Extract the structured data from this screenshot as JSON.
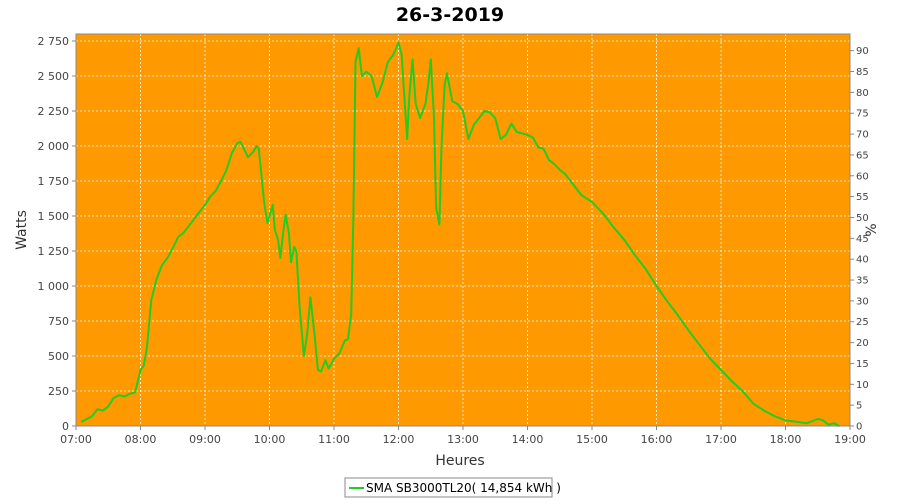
{
  "chart_data": {
    "type": "line",
    "title": "26-3-2019",
    "xlabel": "Heures",
    "ylabel": "Watts",
    "y2label": "%",
    "xlim": [
      "07:00",
      "19:00"
    ],
    "ylim": [
      0,
      2800
    ],
    "y2lim": [
      0,
      94
    ],
    "x_ticks": [
      "07:00",
      "08:00",
      "09:00",
      "10:00",
      "11:00",
      "12:00",
      "13:00",
      "14:00",
      "15:00",
      "16:00",
      "17:00",
      "18:00",
      "19:00"
    ],
    "y_ticks": [
      "0",
      "250",
      "500",
      "750",
      "1 000",
      "1 250",
      "1 500",
      "1 750",
      "2 000",
      "2 250",
      "2 500",
      "2 750"
    ],
    "y2_ticks": [
      "0",
      "5",
      "10",
      "15",
      "20",
      "25",
      "30",
      "35",
      "40",
      "45",
      "50",
      "55",
      "60",
      "65",
      "70",
      "75",
      "80",
      "85",
      "90"
    ],
    "grid": true,
    "legend_position": "bottom-center",
    "colors": {
      "plot_background": "#ff9900",
      "series_line": "#22cc22",
      "grid": "#ffffff"
    },
    "series": [
      {
        "name": "SMA SB3000TL20( 14,854 kWh )",
        "x": [
          "07:05",
          "07:10",
          "07:15",
          "07:20",
          "07:25",
          "07:30",
          "07:35",
          "07:40",
          "07:45",
          "07:50",
          "07:55",
          "08:00",
          "08:03",
          "08:06",
          "08:10",
          "08:15",
          "08:20",
          "08:25",
          "08:30",
          "08:35",
          "08:40",
          "08:45",
          "08:50",
          "08:55",
          "09:00",
          "09:05",
          "09:10",
          "09:15",
          "09:20",
          "09:25",
          "09:30",
          "09:33",
          "09:35",
          "09:40",
          "09:45",
          "09:48",
          "09:50",
          "09:55",
          "09:58",
          "10:00",
          "10:03",
          "10:05",
          "10:08",
          "10:10",
          "10:13",
          "10:15",
          "10:18",
          "10:20",
          "10:23",
          "10:25",
          "10:28",
          "10:32",
          "10:35",
          "10:38",
          "10:42",
          "10:45",
          "10:48",
          "10:52",
          "10:55",
          "11:00",
          "11:05",
          "11:10",
          "11:13",
          "11:16",
          "11:18",
          "11:20",
          "11:23",
          "11:26",
          "11:30",
          "11:35",
          "11:40",
          "11:45",
          "11:50",
          "11:55",
          "11:58",
          "12:00",
          "12:03",
          "12:05",
          "12:08",
          "12:10",
          "12:13",
          "12:16",
          "12:20",
          "12:25",
          "12:28",
          "12:30",
          "12:33",
          "12:35",
          "12:38",
          "12:40",
          "12:43",
          "12:45",
          "12:50",
          "12:55",
          "13:00",
          "13:05",
          "13:10",
          "13:15",
          "13:20",
          "13:25",
          "13:30",
          "13:35",
          "13:40",
          "13:45",
          "13:50",
          "14:00",
          "14:05",
          "14:10",
          "14:15",
          "14:20",
          "14:25",
          "14:30",
          "14:35",
          "14:40",
          "14:45",
          "14:50",
          "15:00",
          "15:10",
          "15:20",
          "15:30",
          "15:40",
          "15:50",
          "16:00",
          "16:10",
          "16:20",
          "16:30",
          "16:40",
          "16:50",
          "17:00",
          "17:10",
          "17:20",
          "17:30",
          "17:40",
          "17:50",
          "18:00",
          "18:10",
          "18:20",
          "18:30",
          "18:35",
          "18:40",
          "18:45",
          "18:50"
        ],
        "values": [
          30,
          50,
          70,
          120,
          110,
          140,
          200,
          220,
          210,
          230,
          240,
          400,
          430,
          560,
          900,
          1050,
          1150,
          1200,
          1270,
          1350,
          1380,
          1430,
          1480,
          1530,
          1580,
          1640,
          1680,
          1750,
          1830,
          1950,
          2020,
          2030,
          2000,
          1920,
          1960,
          2000,
          1980,
          1600,
          1450,
          1500,
          1580,
          1400,
          1330,
          1200,
          1400,
          1510,
          1380,
          1170,
          1280,
          1250,
          850,
          500,
          650,
          920,
          650,
          400,
          390,
          470,
          410,
          480,
          520,
          610,
          620,
          800,
          1500,
          2600,
          2700,
          2500,
          2530,
          2500,
          2350,
          2450,
          2600,
          2650,
          2700,
          2740,
          2650,
          2400,
          2050,
          2350,
          2620,
          2300,
          2200,
          2300,
          2460,
          2620,
          2200,
          1560,
          1440,
          2000,
          2440,
          2520,
          2320,
          2300,
          2250,
          2050,
          2150,
          2200,
          2250,
          2240,
          2200,
          2050,
          2080,
          2160,
          2100,
          2080,
          2060,
          1990,
          1980,
          1900,
          1870,
          1830,
          1800,
          1750,
          1700,
          1650,
          1600,
          1520,
          1420,
          1330,
          1220,
          1120,
          1000,
          890,
          790,
          680,
          580,
          480,
          400,
          320,
          250,
          160,
          110,
          70,
          40,
          30,
          20,
          50,
          40,
          10,
          20,
          0
        ]
      }
    ]
  }
}
